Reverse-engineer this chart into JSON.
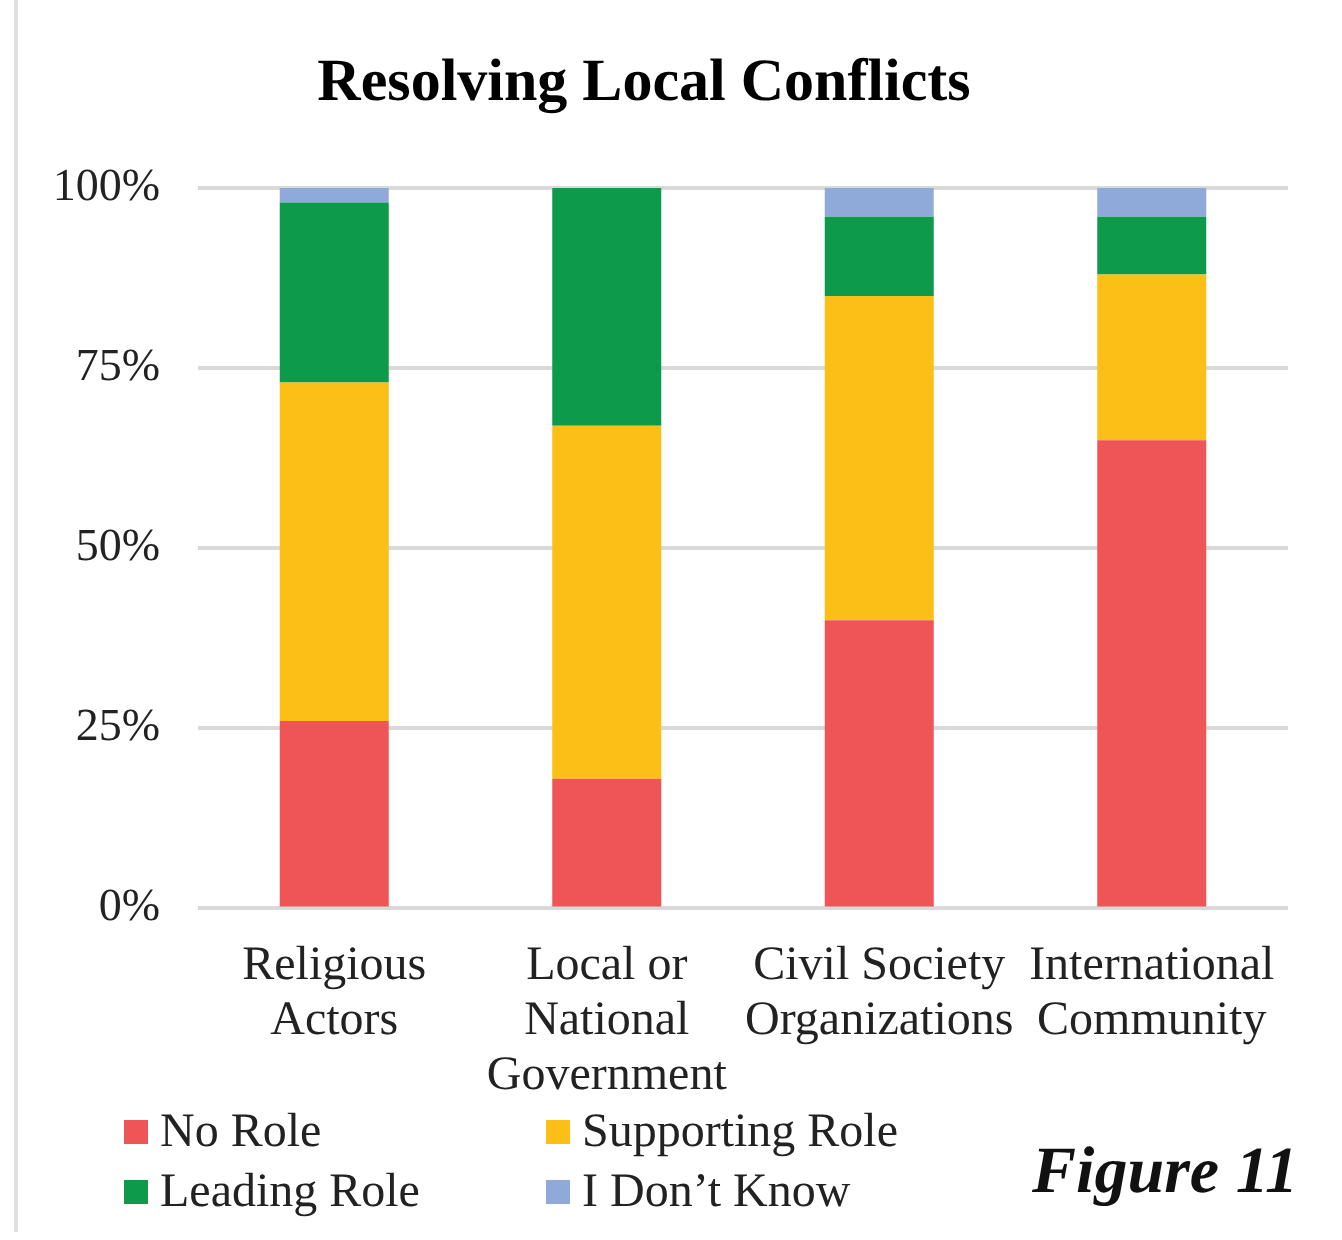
{
  "chart_data": {
    "type": "bar",
    "title": "Resolving Local Conflicts",
    "categories": [
      "Religious Actors",
      "Local or National Government",
      "Civil Society Organizations",
      "International Community"
    ],
    "series": [
      {
        "name": "No Role",
        "color": "#ef5557",
        "values": [
          26,
          18,
          40,
          65
        ]
      },
      {
        "name": "Supporting Role",
        "color": "#fbbf18",
        "values": [
          47,
          49,
          45,
          23
        ]
      },
      {
        "name": "Leading Role",
        "color": "#0d9a4a",
        "values": [
          25,
          33,
          11,
          8
        ]
      },
      {
        "name": "I Don’t Know",
        "color": "#8faad9",
        "values": [
          2,
          0,
          4,
          4
        ]
      }
    ],
    "stacked": true,
    "ylim": [
      0,
      100
    ],
    "yticks": [
      {
        "value": 0,
        "label": "0%"
      },
      {
        "value": 25,
        "label": "25%"
      },
      {
        "value": 50,
        "label": "50%"
      },
      {
        "value": 75,
        "label": "75%"
      },
      {
        "value": 100,
        "label": "100%"
      }
    ],
    "grid": "y",
    "legend": "bottom",
    "annotations": [
      "Figure 11"
    ]
  }
}
